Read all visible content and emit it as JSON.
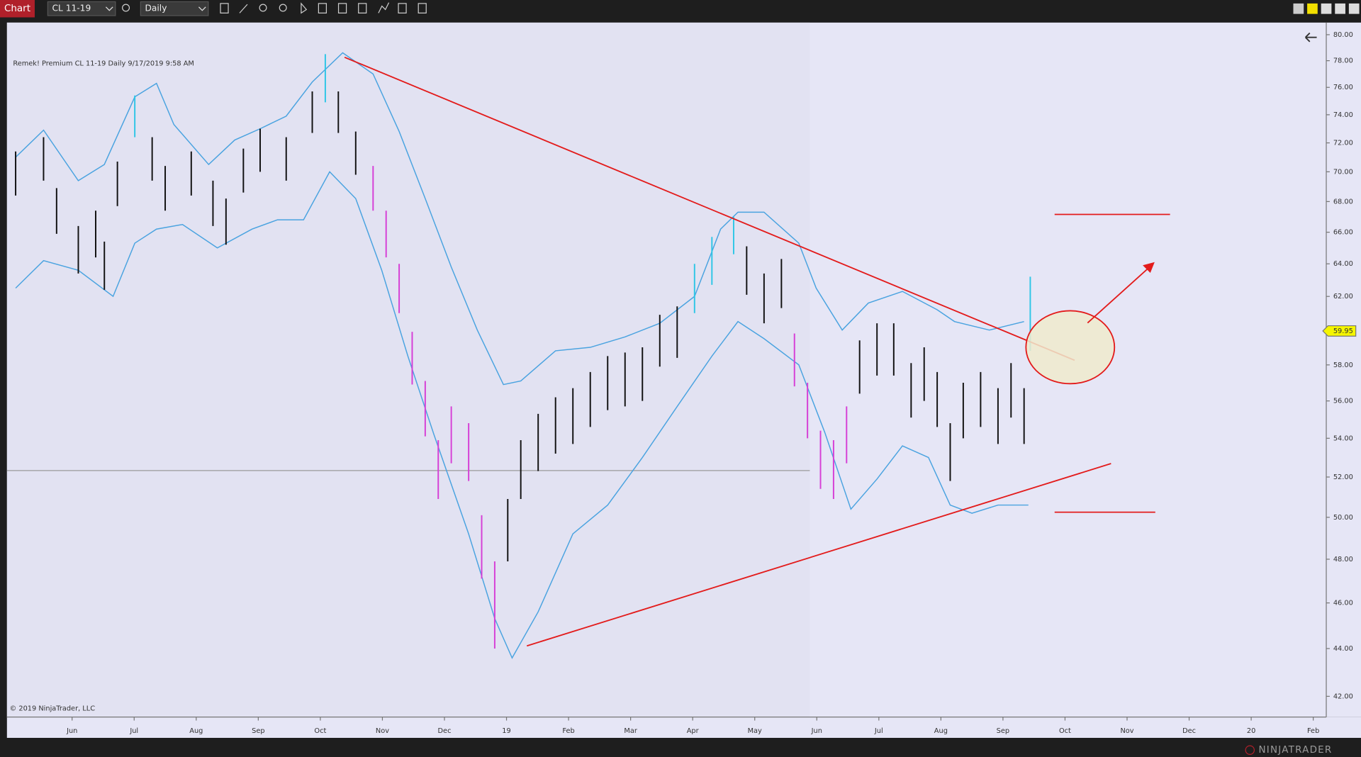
{
  "toolbar": {
    "tab": "Chart",
    "instrument": "CL 11-19",
    "interval": "Daily"
  },
  "chart_data": {
    "type": "ohlc",
    "title": "Remek!  Premium  CL 11-19  Daily  9/17/2019 9:58 AM",
    "copyright": "© 2019 NinjaTrader, LLC",
    "log_scale": true,
    "xlim": [
      -1.05,
      20.21
    ],
    "xticks": [
      {
        "value": 0,
        "label": "Jun"
      },
      {
        "value": 1,
        "label": "Jul"
      },
      {
        "value": 2,
        "label": "Aug"
      },
      {
        "value": 3,
        "label": "Sep"
      },
      {
        "value": 4,
        "label": "Oct"
      },
      {
        "value": 5,
        "label": "Nov"
      },
      {
        "value": 6,
        "label": "Dec"
      },
      {
        "value": 7,
        "label": "19"
      },
      {
        "value": 8,
        "label": "Feb"
      },
      {
        "value": 9,
        "label": "Mar"
      },
      {
        "value": 10,
        "label": "Apr"
      },
      {
        "value": 11,
        "label": "May"
      },
      {
        "value": 12,
        "label": "Jun"
      },
      {
        "value": 13,
        "label": "Jul"
      },
      {
        "value": 14,
        "label": "Aug"
      },
      {
        "value": 15,
        "label": "Sep"
      },
      {
        "value": 16,
        "label": "Oct"
      },
      {
        "value": 17,
        "label": "Nov"
      },
      {
        "value": 18,
        "label": "Dec"
      },
      {
        "value": 19,
        "label": "20"
      },
      {
        "value": 20,
        "label": "Feb"
      }
    ],
    "ylim": [
      41.16,
      80.95
    ],
    "yticks": [
      {
        "value": 42,
        "label": "42.00"
      },
      {
        "value": 44,
        "label": "44.00"
      },
      {
        "value": 46,
        "label": "46.00"
      },
      {
        "value": 48,
        "label": "48.00"
      },
      {
        "value": 50,
        "label": "50.00"
      },
      {
        "value": 52,
        "label": "52.00"
      },
      {
        "value": 54,
        "label": "54.00"
      },
      {
        "value": 56,
        "label": "56.00"
      },
      {
        "value": 58,
        "label": "58.00"
      },
      {
        "value": 62,
        "label": "62.00"
      },
      {
        "value": 64,
        "label": "64.00"
      },
      {
        "value": 66,
        "label": "66.00"
      },
      {
        "value": 68,
        "label": "68.00"
      },
      {
        "value": 70,
        "label": "70.00"
      },
      {
        "value": 72,
        "label": "72.00"
      },
      {
        "value": 74,
        "label": "74.00"
      },
      {
        "value": 76,
        "label": "76.00"
      },
      {
        "value": 78,
        "label": "78.00"
      },
      {
        "value": 80,
        "label": "80.00"
      }
    ],
    "last_price": 59.95,
    "bars": {
      "x": [
        -0.91,
        -0.46,
        -0.25,
        0.1,
        0.38,
        0.52,
        0.73,
        1.01,
        1.29,
        1.5,
        1.92,
        2.27,
        2.48,
        2.76,
        3.03,
        3.45,
        3.87,
        4.08,
        4.29,
        4.57,
        4.85,
        5.06,
        5.27,
        5.48,
        5.69,
        5.9,
        6.11,
        6.39,
        6.6,
        6.81,
        7.02,
        7.23,
        7.51,
        7.79,
        8.07,
        8.35,
        8.63,
        8.91,
        9.19,
        9.47,
        9.75,
        10.03,
        10.31,
        10.66,
        10.87,
        11.15,
        11.43,
        11.64,
        11.85,
        12.06,
        12.27,
        12.48,
        12.69,
        12.97,
        13.24,
        13.52,
        13.73,
        13.94,
        14.15,
        14.36,
        14.64,
        14.92,
        15.13,
        15.34,
        15.44
      ],
      "high": [
        71.4,
        72.4,
        68.9,
        66.4,
        67.4,
        65.4,
        70.7,
        75.4,
        72.4,
        70.4,
        71.4,
        69.4,
        68.2,
        71.6,
        73,
        72.4,
        75.7,
        78.5,
        75.7,
        72.8,
        70.4,
        67.4,
        64,
        59.9,
        57.1,
        53.9,
        55.7,
        54.8,
        50.1,
        47.9,
        50.9,
        53.9,
        55.3,
        56.2,
        56.7,
        57.6,
        58.5,
        58.7,
        59,
        60.9,
        61.4,
        64,
        65.7,
        67,
        65.1,
        63.4,
        64.3,
        59.8,
        57,
        54.4,
        53.9,
        55.7,
        59.4,
        60.4,
        60.4,
        58.1,
        59,
        57.6,
        54.8,
        57,
        57.6,
        56.7,
        58.1,
        56.7,
        63.2
      ],
      "low": [
        68.4,
        69.4,
        65.9,
        63.4,
        64.4,
        62.4,
        67.7,
        72.4,
        69.4,
        67.4,
        68.4,
        66.4,
        65.2,
        68.6,
        70,
        69.4,
        72.7,
        74.9,
        72.7,
        69.8,
        67.4,
        64.4,
        61,
        56.9,
        54.1,
        50.9,
        52.7,
        51.8,
        47.1,
        44,
        47.9,
        50.9,
        52.3,
        53.2,
        53.7,
        54.6,
        55.5,
        55.7,
        56,
        57.9,
        58.4,
        61,
        62.7,
        64.6,
        62.1,
        60.4,
        61.3,
        56.8,
        54,
        51.4,
        50.9,
        52.7,
        56.4,
        57.4,
        57.4,
        55.1,
        56,
        54.6,
        51.8,
        54,
        54.6,
        53.7,
        55.1,
        53.7,
        58.8
      ],
      "colors": [
        "#111111",
        "#111111",
        "#111111",
        "#111111",
        "#111111",
        "#111111",
        "#111111",
        "#2ec6e6",
        "#111111",
        "#111111",
        "#111111",
        "#111111",
        "#111111",
        "#111111",
        "#111111",
        "#111111",
        "#111111",
        "#2ec6e6",
        "#111111",
        "#111111",
        "#d63fd6",
        "#d63fd6",
        "#d63fd6",
        "#d63fd6",
        "#d63fd6",
        "#d63fd6",
        "#d63fd6",
        "#d63fd6",
        "#d63fd6",
        "#d63fd6",
        "#111111",
        "#111111",
        "#111111",
        "#111111",
        "#111111",
        "#111111",
        "#111111",
        "#111111",
        "#111111",
        "#111111",
        "#111111",
        "#2ec6e6",
        "#2ec6e6",
        "#2ec6e6",
        "#111111",
        "#111111",
        "#111111",
        "#d63fd6",
        "#d63fd6",
        "#d63fd6",
        "#d63fd6",
        "#d63fd6",
        "#111111",
        "#111111",
        "#111111",
        "#111111",
        "#111111",
        "#111111",
        "#111111",
        "#111111",
        "#111111",
        "#111111",
        "#111111",
        "#111111",
        "#2ec6e6"
      ]
    },
    "band": {
      "color": "#4aa3e0",
      "upper": {
        "x": [
          -0.91,
          -0.46,
          0.1,
          0.52,
          1.01,
          1.36,
          1.64,
          2.2,
          2.62,
          3.03,
          3.45,
          3.87,
          4.36,
          4.85,
          5.27,
          5.69,
          6.11,
          6.53,
          6.95,
          7.23,
          7.79,
          8.35,
          8.91,
          9.47,
          10.03,
          10.45,
          10.73,
          11.15,
          11.71,
          11.99,
          12.41,
          12.83,
          13.38,
          13.94,
          14.22,
          14.78,
          15.34
        ],
        "values": [
          71,
          72.9,
          69.4,
          70.5,
          75.3,
          76.3,
          73.3,
          70.5,
          72.2,
          73,
          73.9,
          76.4,
          78.6,
          77,
          72.8,
          68.2,
          63.8,
          60,
          56.9,
          57.1,
          58.8,
          59,
          59.6,
          60.4,
          62,
          66.2,
          67.3,
          67.3,
          65.3,
          62.5,
          60,
          61.6,
          62.3,
          61.2,
          60.5,
          60,
          60.5
        ]
      },
      "lower": {
        "x": [
          -0.91,
          -0.46,
          0.1,
          0.66,
          1.01,
          1.36,
          1.78,
          2.34,
          2.9,
          3.31,
          3.73,
          4.15,
          4.57,
          4.99,
          5.41,
          5.83,
          6.39,
          6.81,
          7.09,
          7.51,
          8.07,
          8.63,
          9.19,
          9.75,
          10.31,
          10.73,
          11.15,
          11.71,
          12.13,
          12.55,
          12.97,
          13.38,
          13.8,
          14.15,
          14.5,
          14.92,
          15.41
        ],
        "values": [
          62.5,
          64.2,
          63.6,
          62,
          65.3,
          66.2,
          66.5,
          65,
          66.2,
          66.8,
          66.8,
          70,
          68.2,
          63.6,
          58.5,
          54.2,
          49.2,
          45.3,
          43.6,
          45.6,
          49.2,
          50.6,
          53,
          55.7,
          58.5,
          60.5,
          59.5,
          58,
          54.3,
          50.4,
          51.9,
          53.6,
          53,
          50.6,
          50.2,
          50.6,
          50.6
        ]
      }
    }
  },
  "footer": {
    "brand": "NINJATRADER"
  }
}
